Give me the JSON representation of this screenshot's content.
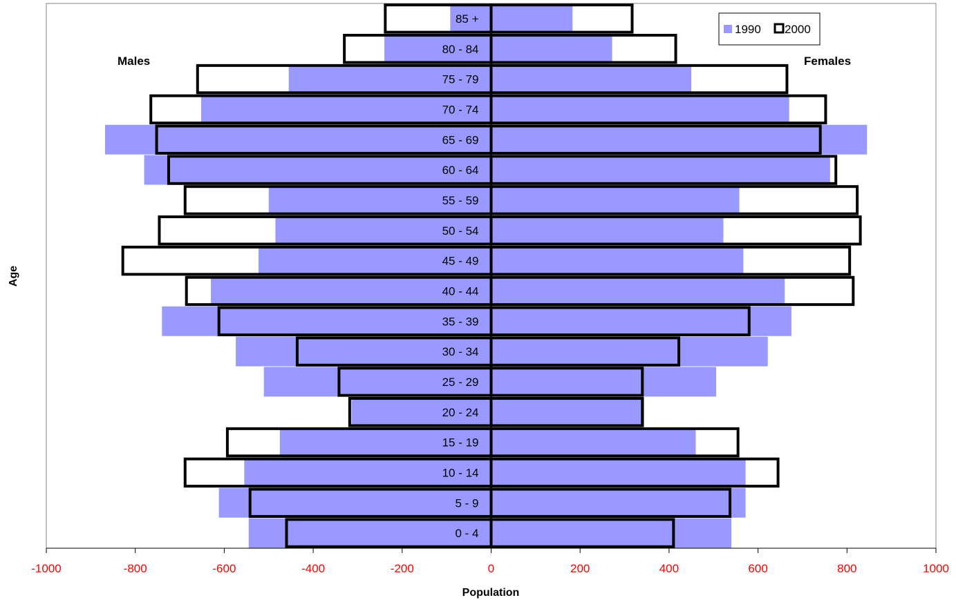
{
  "chart_data": {
    "type": "bar",
    "orientation": "horizontal",
    "title": "",
    "xlabel": "Population",
    "ylabel": "Age",
    "xlim": [
      -1000,
      1000
    ],
    "x_ticks": [
      -1000,
      -800,
      -600,
      -400,
      -200,
      0,
      200,
      400,
      600,
      800,
      1000
    ],
    "tick_color": "#ff0000",
    "grid": false,
    "legend_position": "top-right",
    "left_label": "Males",
    "right_label": "Females",
    "categories": [
      "0 - 4",
      "5 - 9",
      "10 - 14",
      "15 - 19",
      "20 - 24",
      "25 - 29",
      "30 - 34",
      "35 - 39",
      "40 - 44",
      "45 - 49",
      "50 - 54",
      "55 - 59",
      "60 - 64",
      "65 - 69",
      "70 - 74",
      "75 - 79",
      "80 - 84",
      "85 +"
    ],
    "series": [
      {
        "name": "1990",
        "style": "filled",
        "color": "#9999ff",
        "males": [
          -545,
          -612,
          -555,
          -475,
          -314,
          -511,
          -574,
          -740,
          -630,
          -523,
          -485,
          -500,
          -780,
          -868,
          -652,
          -455,
          -240,
          -92
        ],
        "females": [
          540,
          572,
          572,
          460,
          344,
          506,
          622,
          675,
          660,
          567,
          522,
          558,
          762,
          845,
          670,
          450,
          272,
          183
        ]
      },
      {
        "name": "2000",
        "style": "outline",
        "color": "#000000",
        "males": [
          -460,
          -542,
          -688,
          -593,
          -318,
          -342,
          -436,
          -612,
          -685,
          -828,
          -746,
          -688,
          -725,
          -752,
          -765,
          -660,
          -330,
          -238
        ],
        "females": [
          410,
          537,
          645,
          555,
          340,
          340,
          422,
          580,
          814,
          806,
          830,
          823,
          775,
          740,
          752,
          665,
          415,
          317
        ]
      }
    ]
  }
}
